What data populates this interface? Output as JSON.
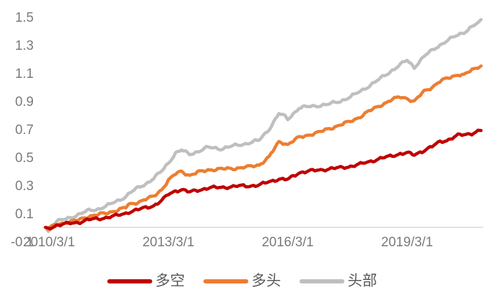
{
  "chart_data": {
    "type": "line",
    "title": "",
    "grid": false,
    "background": "#ffffff",
    "axis_line_color": "#d9d9d9",
    "tick_color": "#7a7a7a",
    "legend_text_color": "#595959",
    "legend_position": "bottom",
    "x_axis": {
      "tick_labels": [
        "2010/3/1",
        "2013/3/1",
        "2016/3/1",
        "2019/3/1"
      ],
      "tick_positions": [
        2010.17,
        2013.17,
        2016.17,
        2019.17
      ],
      "range": [
        2010.0,
        2021.05
      ]
    },
    "y_axis": {
      "tick_labels": [
        "1.5",
        "1.3",
        "1.1",
        "0.9",
        "0.7",
        "0.5",
        "0.3",
        "0.1",
        "-0.1"
      ],
      "tick_values": [
        1.5,
        1.3,
        1.1,
        0.9,
        0.7,
        0.5,
        0.3,
        0.1,
        -0.1
      ],
      "range": [
        -0.1,
        1.5
      ]
    },
    "x": [
      2010.08,
      2010.15,
      2010.35,
      2010.6,
      2010.9,
      2011.17,
      2011.4,
      2011.6,
      2011.9,
      2012.1,
      2012.17,
      2012.4,
      2012.6,
      2012.8,
      2013.0,
      2013.17,
      2013.35,
      2013.5,
      2013.7,
      2013.9,
      2014.17,
      2014.5,
      2014.8,
      2015.0,
      2015.17,
      2015.45,
      2015.7,
      2015.95,
      2016.1,
      2016.17,
      2016.45,
      2016.7,
      2017.0,
      2017.17,
      2017.5,
      2017.75,
      2018.0,
      2018.17,
      2018.5,
      2018.8,
      2019.0,
      2019.17,
      2019.35,
      2019.6,
      2019.8,
      2020.0,
      2020.17,
      2020.45,
      2020.6,
      2020.8,
      2020.95,
      2021.03
    ],
    "series": [
      {
        "name": "多空",
        "color": "#c00000",
        "values": [
          0,
          -0.01,
          0.015,
          0.025,
          0.035,
          0.055,
          0.06,
          0.07,
          0.085,
          0.1,
          0.11,
          0.125,
          0.14,
          0.155,
          0.19,
          0.235,
          0.26,
          0.27,
          0.25,
          0.265,
          0.28,
          0.285,
          0.29,
          0.295,
          0.295,
          0.3,
          0.325,
          0.345,
          0.34,
          0.34,
          0.39,
          0.4,
          0.41,
          0.415,
          0.425,
          0.435,
          0.45,
          0.465,
          0.49,
          0.51,
          0.525,
          0.53,
          0.515,
          0.55,
          0.575,
          0.61,
          0.62,
          0.655,
          0.66,
          0.67,
          0.685,
          0.69
        ]
      },
      {
        "name": "多头",
        "color": "#ed7d31",
        "values": [
          0,
          -0.01,
          0.02,
          0.035,
          0.05,
          0.08,
          0.09,
          0.1,
          0.125,
          0.14,
          0.16,
          0.18,
          0.2,
          0.22,
          0.27,
          0.335,
          0.38,
          0.4,
          0.37,
          0.39,
          0.41,
          0.415,
          0.42,
          0.425,
          0.43,
          0.445,
          0.5,
          0.61,
          0.6,
          0.59,
          0.64,
          0.66,
          0.68,
          0.7,
          0.73,
          0.755,
          0.79,
          0.82,
          0.87,
          0.91,
          0.93,
          0.92,
          0.895,
          0.97,
          1.0,
          1.04,
          1.06,
          1.09,
          1.085,
          1.12,
          1.14,
          1.15
        ]
      },
      {
        "name": "头部",
        "color": "#bfbfbf",
        "values": [
          0,
          -0.03,
          0.04,
          0.06,
          0.09,
          0.12,
          0.13,
          0.15,
          0.19,
          0.22,
          0.24,
          0.28,
          0.31,
          0.35,
          0.4,
          0.46,
          0.53,
          0.55,
          0.52,
          0.54,
          0.57,
          0.56,
          0.58,
          0.59,
          0.6,
          0.62,
          0.7,
          0.81,
          0.79,
          0.77,
          0.85,
          0.86,
          0.87,
          0.875,
          0.9,
          0.93,
          0.97,
          1.0,
          1.06,
          1.12,
          1.16,
          1.19,
          1.14,
          1.22,
          1.26,
          1.3,
          1.33,
          1.37,
          1.39,
          1.43,
          1.455,
          1.48
        ]
      }
    ]
  }
}
